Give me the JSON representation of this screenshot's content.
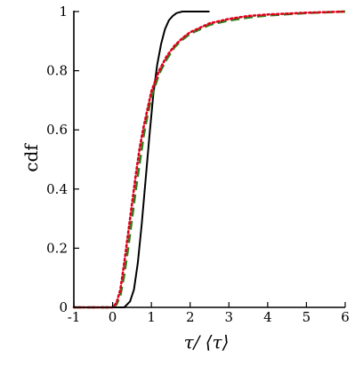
{
  "chart_data": {
    "type": "line",
    "xlabel": "τ/ ⟨τ⟩",
    "ylabel": "cdf",
    "xlim": [
      -1,
      6
    ],
    "ylim": [
      0,
      1
    ],
    "x_ticks": [
      -1,
      0,
      1,
      2,
      3,
      4,
      5,
      6
    ],
    "x_tick_labels": [
      "-1",
      "0",
      "1",
      "2",
      "3",
      "4",
      "5",
      "6"
    ],
    "y_ticks": [
      0,
      0.2,
      0.4,
      0.6,
      0.8,
      1
    ],
    "y_tick_labels": [
      "0",
      "0.2",
      "0.4",
      "0.6",
      "0.8",
      "1"
    ],
    "grid": false,
    "legend": "none",
    "series": [
      {
        "style": "solid",
        "color": "#000000",
        "x": [
          -1.0,
          0.0,
          0.3,
          0.45,
          0.55,
          0.65,
          0.75,
          0.85,
          0.95,
          1.05,
          1.15,
          1.25,
          1.35,
          1.45,
          1.55,
          1.65,
          1.8,
          2.0,
          2.5
        ],
        "y": [
          0.0,
          0.0,
          0.0,
          0.02,
          0.06,
          0.15,
          0.28,
          0.43,
          0.58,
          0.72,
          0.82,
          0.89,
          0.94,
          0.97,
          0.985,
          0.995,
          1.0,
          1.0,
          1.0
        ]
      },
      {
        "style": "dashed",
        "color": "#2e7d1e",
        "x": [
          -1.0,
          0.0,
          0.1,
          0.2,
          0.3,
          0.4,
          0.5,
          0.6,
          0.7,
          0.8,
          0.9,
          1.0,
          1.2,
          1.4,
          1.6,
          1.8,
          2.0,
          2.5,
          3.0,
          3.5,
          4.0,
          5.0,
          6.0
        ],
        "y": [
          0.0,
          0.0,
          0.01,
          0.04,
          0.11,
          0.2,
          0.3,
          0.4,
          0.49,
          0.58,
          0.65,
          0.71,
          0.79,
          0.84,
          0.88,
          0.905,
          0.925,
          0.955,
          0.97,
          0.98,
          0.987,
          0.995,
          1.0
        ]
      },
      {
        "style": "dotted",
        "color": "#e0001b",
        "x": [
          -1.0,
          0.0,
          0.1,
          0.2,
          0.3,
          0.4,
          0.5,
          0.6,
          0.7,
          0.8,
          0.9,
          1.0,
          1.2,
          1.4,
          1.6,
          1.8,
          2.0,
          2.5,
          3.0,
          3.5,
          4.0,
          5.0,
          6.0
        ],
        "y": [
          0.0,
          0.0,
          0.015,
          0.06,
          0.15,
          0.25,
          0.35,
          0.45,
          0.54,
          0.61,
          0.67,
          0.73,
          0.8,
          0.85,
          0.885,
          0.91,
          0.93,
          0.96,
          0.975,
          0.985,
          0.99,
          0.996,
          1.0
        ]
      }
    ]
  }
}
